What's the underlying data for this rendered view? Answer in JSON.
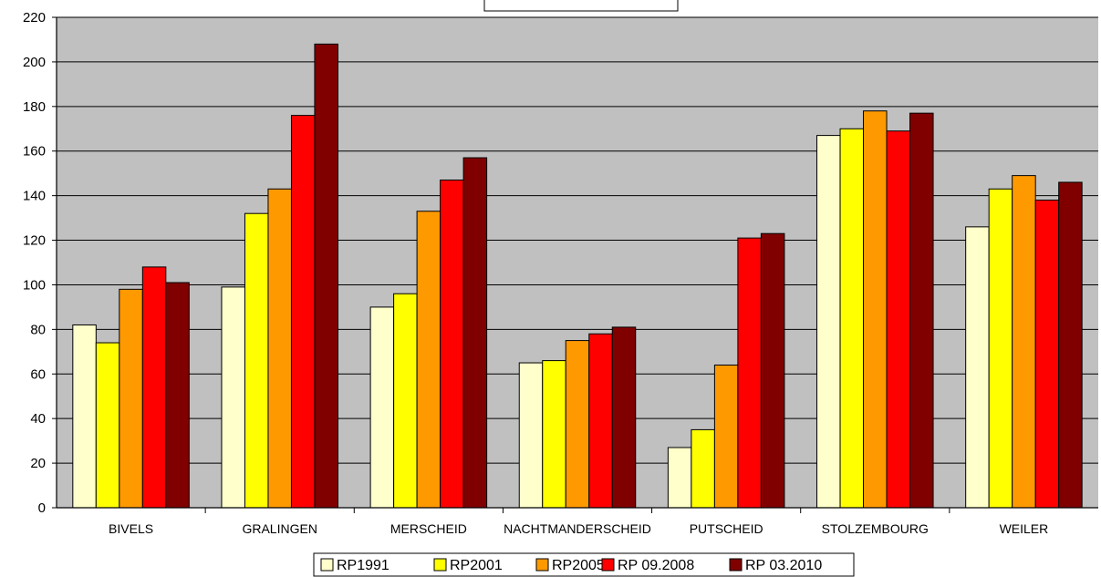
{
  "chart_data": {
    "type": "bar",
    "title": "",
    "xlabel": "",
    "ylabel": "",
    "ylim": [
      0,
      220
    ],
    "yticks": [
      0,
      20,
      40,
      60,
      80,
      100,
      120,
      140,
      160,
      180,
      200,
      220
    ],
    "grid": true,
    "legend_position": "bottom",
    "categories": [
      "BIVELS",
      "GRALINGEN",
      "MERSCHEID",
      "NACHTMANDERSCHEID",
      "PUTSCHEID",
      "STOLZEMBOURG",
      "WEILER"
    ],
    "series": [
      {
        "name": "RP1991",
        "color": "#ffffcc",
        "values": [
          82,
          99,
          90,
          65,
          27,
          167,
          126
        ]
      },
      {
        "name": "RP2001",
        "color": "#ffff00",
        "values": [
          74,
          132,
          96,
          66,
          35,
          170,
          143
        ]
      },
      {
        "name": "RP2005",
        "color": "#ff9900",
        "values": [
          98,
          143,
          133,
          75,
          64,
          178,
          149
        ]
      },
      {
        "name": "RP 09.2008",
        "color": "#ff0000",
        "values": [
          108,
          176,
          147,
          78,
          121,
          169,
          138
        ]
      },
      {
        "name": "RP 03.2010",
        "color": "#800000",
        "values": [
          101,
          208,
          157,
          81,
          123,
          177,
          146
        ]
      }
    ],
    "plot_background": "#c0c0c0"
  }
}
